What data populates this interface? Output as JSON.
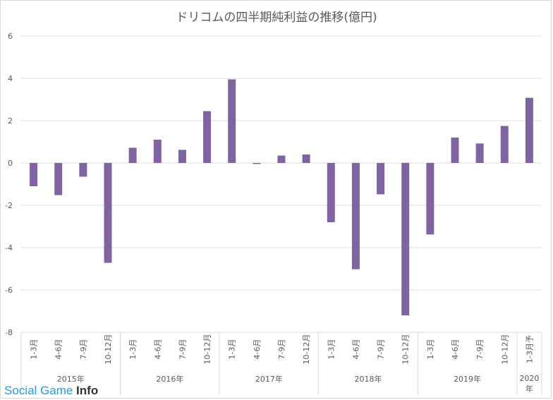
{
  "chart_data": {
    "type": "bar",
    "title": "ドリコムの四半期純利益の推移(億円)",
    "xlabel": "",
    "ylabel": "",
    "ylim": [
      -8,
      6
    ],
    "yticks": [
      "6",
      "4",
      "2",
      "0",
      "-2",
      "-4",
      "-6",
      "-8"
    ],
    "grid": true,
    "legend": "none",
    "bar_color": "#8064a2",
    "categories": [
      "1-3月",
      "4-6月",
      "7-9月",
      "10-12月",
      "1-3月",
      "4-6月",
      "7-9月",
      "10-12月",
      "1-3月",
      "4-6月",
      "7-9月",
      "10-12月",
      "1-3月",
      "4-6月",
      "7-9月",
      "10-12月",
      "1-3月",
      "4-6月",
      "7-9月",
      "10-12月",
      "1-3月予"
    ],
    "values": [
      -1.1,
      -1.52,
      -0.65,
      -4.72,
      0.72,
      1.1,
      0.62,
      2.45,
      3.95,
      -0.05,
      0.35,
      0.4,
      -2.8,
      -5.02,
      -1.48,
      -7.2,
      -3.38,
      1.2,
      0.92,
      1.75,
      3.08
    ],
    "groups": [
      {
        "label": "2015年",
        "count": 4
      },
      {
        "label": "2016年",
        "count": 4
      },
      {
        "label": "2017年",
        "count": 4
      },
      {
        "label": "2018年",
        "count": 4
      },
      {
        "label": "2019年",
        "count": 4
      },
      {
        "label": "2020年",
        "count": 1
      }
    ]
  },
  "watermark": {
    "part1": "Social Game ",
    "part2": "Info"
  }
}
